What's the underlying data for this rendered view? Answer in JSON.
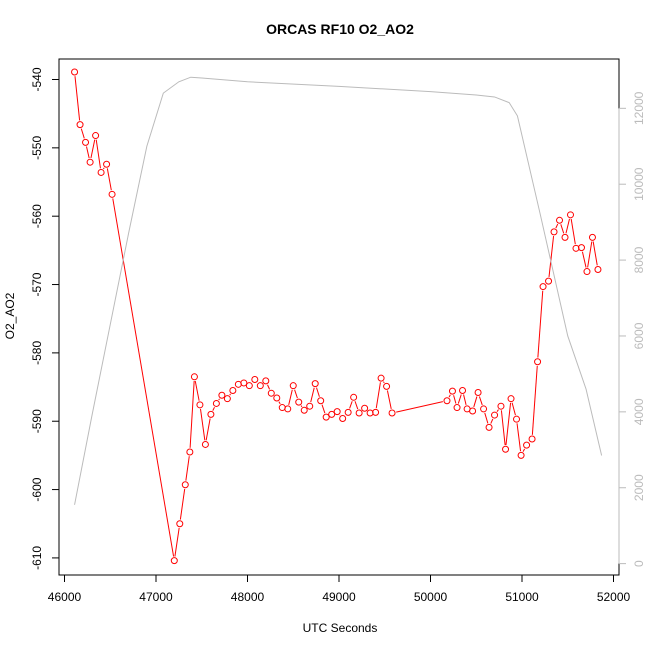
{
  "chart_data": {
    "type": "line",
    "title": "ORCAS RF10 O2_AO2",
    "xlabel": "UTC Seconds",
    "ylabel": "O2_AO2",
    "xlim": [
      45940,
      52060
    ],
    "ylim": [
      -612.5,
      -537
    ],
    "y2lim": [
      -300,
      13300
    ],
    "x_ticks": [
      46000,
      47000,
      48000,
      49000,
      50000,
      51000,
      52000
    ],
    "y_ticks": [
      -540,
      -550,
      -560,
      -570,
      -580,
      -590,
      -600,
      -610
    ],
    "y2_ticks": [
      0,
      2000,
      4000,
      6000,
      8000,
      10000,
      12000
    ],
    "x_tick_labels": [
      "46000",
      "47000",
      "48000",
      "49000",
      "50000",
      "51000",
      "52000"
    ],
    "y_tick_labels": [
      "-540",
      "-550",
      "-560",
      "-570",
      "-580",
      "-590",
      "-600",
      "-610"
    ],
    "y2_tick_labels": [
      "0",
      "2000",
      "4000",
      "6000",
      "8000",
      "10000",
      "12000"
    ],
    "series": [
      {
        "axis": "left",
        "color": "#ff0000",
        "markers": true,
        "points": [
          [
            46110,
            -538.9
          ],
          [
            46170,
            -546.6
          ],
          [
            46230,
            -549.2
          ],
          [
            46280,
            -552.1
          ],
          [
            46340,
            -548.2
          ],
          [
            46400,
            -553.6
          ],
          [
            46460,
            -552.4
          ],
          [
            46520,
            -556.8
          ],
          [
            47200,
            -610.4
          ],
          [
            47260,
            -605.0
          ],
          [
            47320,
            -599.3
          ],
          [
            47370,
            -594.5
          ],
          [
            47420,
            -583.5
          ],
          [
            47480,
            -587.6
          ],
          [
            47540,
            -593.4
          ],
          [
            47600,
            -589.0
          ],
          [
            47660,
            -587.4
          ],
          [
            47720,
            -586.2
          ],
          [
            47780,
            -586.7
          ],
          [
            47840,
            -585.5
          ],
          [
            47900,
            -584.6
          ],
          [
            47960,
            -584.4
          ],
          [
            48020,
            -584.8
          ],
          [
            48080,
            -583.9
          ],
          [
            48140,
            -584.8
          ],
          [
            48200,
            -584.1
          ],
          [
            48260,
            -585.9
          ],
          [
            48320,
            -586.6
          ],
          [
            48380,
            -588.0
          ],
          [
            48440,
            -588.2
          ],
          [
            48500,
            -584.8
          ],
          [
            48560,
            -587.2
          ],
          [
            48620,
            -588.4
          ],
          [
            48680,
            -587.8
          ],
          [
            48740,
            -584.5
          ],
          [
            48800,
            -587.0
          ],
          [
            48860,
            -589.4
          ],
          [
            48920,
            -589.0
          ],
          [
            48980,
            -588.6
          ],
          [
            49040,
            -589.6
          ],
          [
            49100,
            -588.7
          ],
          [
            49160,
            -586.5
          ],
          [
            49220,
            -588.8
          ],
          [
            49280,
            -588.1
          ],
          [
            49340,
            -588.8
          ],
          [
            49400,
            -588.7
          ],
          [
            49460,
            -583.7
          ],
          [
            49520,
            -584.9
          ],
          [
            49580,
            -588.8
          ],
          [
            50180,
            -587.0
          ],
          [
            50240,
            -585.6
          ],
          [
            50290,
            -588.0
          ],
          [
            50350,
            -585.5
          ],
          [
            50400,
            -588.2
          ],
          [
            50460,
            -588.5
          ],
          [
            50520,
            -585.8
          ],
          [
            50580,
            -588.2
          ],
          [
            50640,
            -590.9
          ],
          [
            50700,
            -589.1
          ],
          [
            50770,
            -587.8
          ],
          [
            50820,
            -594.1
          ],
          [
            50880,
            -586.7
          ],
          [
            50940,
            -589.7
          ],
          [
            50990,
            -595.0
          ],
          [
            51050,
            -593.5
          ],
          [
            51110,
            -592.6
          ],
          [
            51170,
            -581.3
          ],
          [
            51230,
            -570.3
          ],
          [
            51290,
            -569.5
          ],
          [
            51350,
            -562.3
          ],
          [
            51410,
            -560.6
          ],
          [
            51470,
            -563.1
          ],
          [
            51530,
            -559.8
          ],
          [
            51590,
            -564.7
          ],
          [
            51650,
            -564.6
          ],
          [
            51710,
            -568.1
          ],
          [
            51770,
            -563.1
          ],
          [
            51830,
            -567.8
          ]
        ]
      },
      {
        "axis": "right",
        "color": "#bbbbbb",
        "markers": false,
        "points": [
          [
            46110,
            1550
          ],
          [
            46300,
            3900
          ],
          [
            46500,
            6300
          ],
          [
            46700,
            8700
          ],
          [
            46900,
            11000
          ],
          [
            47080,
            12400
          ],
          [
            47250,
            12700
          ],
          [
            47380,
            12820
          ],
          [
            47500,
            12800
          ],
          [
            48000,
            12700
          ],
          [
            49000,
            12580
          ],
          [
            50000,
            12440
          ],
          [
            50500,
            12350
          ],
          [
            50700,
            12300
          ],
          [
            50860,
            12150
          ],
          [
            50950,
            11800
          ],
          [
            51200,
            9200
          ],
          [
            51500,
            6000
          ],
          [
            51700,
            4600
          ],
          [
            51870,
            2850
          ]
        ]
      }
    ]
  }
}
